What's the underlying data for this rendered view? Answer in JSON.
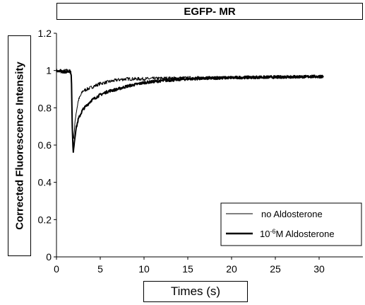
{
  "chart_data": {
    "type": "line",
    "title": "EGFP- MR",
    "xlabel": "Times (s)",
    "ylabel": "Corrected Fluorescence Intensity",
    "xlim": [
      0,
      35
    ],
    "ylim": [
      0,
      1.2
    ],
    "xticks": [
      0,
      5,
      10,
      15,
      20,
      25,
      30
    ],
    "yticks": [
      0,
      0.2,
      0.4,
      0.6,
      0.8,
      1,
      1.2
    ],
    "xtick_labels": [
      "0",
      "5",
      "10",
      "15",
      "20",
      "25",
      "30"
    ],
    "ytick_labels": [
      "0",
      "0.2",
      "0.4",
      "0.6",
      "0.8",
      "1",
      "1.2"
    ],
    "grid": false,
    "legend_position": "bottom-right",
    "series": [
      {
        "name": "no Aldosterone",
        "line": "thin",
        "x": [
          0,
          0.5,
          1,
          1.5,
          1.7,
          1.8,
          1.9,
          2.0,
          2.2,
          2.5,
          3,
          3.5,
          4,
          5,
          6,
          7,
          8,
          10,
          12,
          15,
          20,
          25,
          30.5
        ],
        "y": [
          1.0,
          0.99,
          1.0,
          1.0,
          0.98,
          0.75,
          0.62,
          0.66,
          0.76,
          0.84,
          0.89,
          0.9,
          0.91,
          0.93,
          0.94,
          0.95,
          0.955,
          0.955,
          0.958,
          0.96,
          0.962,
          0.965,
          0.968
        ]
      },
      {
        "name": "10-6M Aldosterone",
        "legend_main": "10",
        "legend_sup": "-6",
        "legend_rest": "M Aldosterone",
        "line": "thick",
        "x": [
          0,
          0.5,
          1,
          1.5,
          1.7,
          1.8,
          1.9,
          2.0,
          2.2,
          2.5,
          3,
          4,
          5,
          6,
          7,
          8,
          10,
          12,
          15,
          20,
          25,
          30.5
        ],
        "y": [
          1.0,
          1.0,
          0.99,
          1.0,
          0.98,
          0.7,
          0.56,
          0.6,
          0.68,
          0.74,
          0.79,
          0.84,
          0.87,
          0.89,
          0.9,
          0.915,
          0.935,
          0.945,
          0.955,
          0.962,
          0.965,
          0.968
        ]
      }
    ]
  }
}
